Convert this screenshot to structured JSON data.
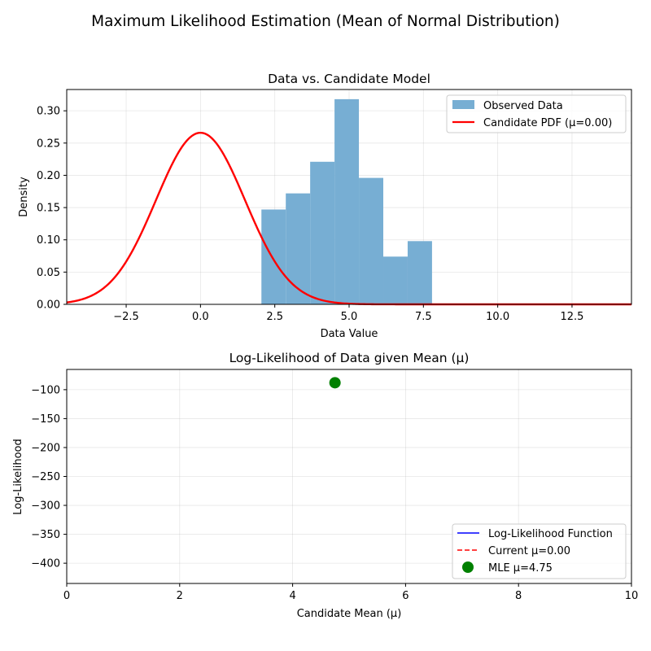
{
  "figure": {
    "title": "Maximum Likelihood Estimation (Mean of Normal Distribution)"
  },
  "chart_data": [
    {
      "type": "bar",
      "title": "Data vs. Candidate Model",
      "xlabel": "Data Value",
      "ylabel": "Density",
      "xlim": [
        -4.5,
        14.5
      ],
      "ylim": [
        0,
        0.333
      ],
      "xticks": [
        -2.5,
        0.0,
        2.5,
        5.0,
        7.5,
        10.0,
        12.5
      ],
      "xtick_labels": [
        "−2.5",
        "0.0",
        "2.5",
        "5.0",
        "7.5",
        "10.0",
        "12.5"
      ],
      "yticks": [
        0.0,
        0.05,
        0.1,
        0.15,
        0.2,
        0.25,
        0.3
      ],
      "ytick_labels": [
        "0.00",
        "0.05",
        "0.10",
        "0.15",
        "0.20",
        "0.25",
        "0.30"
      ],
      "grid": true,
      "legend_position": "top-right",
      "histogram": {
        "name": "Observed Data",
        "color": "#77aed3",
        "bin_edges": [
          2.05,
          2.87,
          3.69,
          4.51,
          5.33,
          6.15,
          6.97,
          7.79
        ],
        "values": [
          0.147,
          0.172,
          0.221,
          0.318,
          0.196,
          0.074,
          0.098
        ]
      },
      "pdf": {
        "name": "Candidate PDF (μ=0.00)",
        "color": "#ff0000",
        "mean": 0.0,
        "sd": 1.5
      }
    },
    {
      "type": "line",
      "title": "Log-Likelihood of Data given Mean (μ)",
      "xlabel": "Candidate Mean (μ)",
      "ylabel": "Log-Likelihood",
      "xlim": [
        0,
        10
      ],
      "ylim": [
        -435,
        -65
      ],
      "xticks": [
        0,
        2,
        4,
        6,
        8,
        10
      ],
      "xtick_labels": [
        "0",
        "2",
        "4",
        "6",
        "8",
        "10"
      ],
      "yticks": [
        -100,
        -150,
        -200,
        -250,
        -300,
        -350,
        -400
      ],
      "ytick_labels": [
        "−100",
        "−150",
        "−200",
        "−250",
        "−300",
        "−350",
        "−400"
      ],
      "grid": true,
      "legend_position": "bottom-right",
      "series": [
        {
          "name": "Log-Likelihood Function",
          "color": "#0000ff",
          "style": "solid",
          "x": [],
          "y": []
        },
        {
          "name": "Current μ=0.00",
          "color": "#ff0000",
          "style": "dashed",
          "x": [],
          "y": []
        }
      ],
      "mle_point": {
        "name": "MLE μ=4.75",
        "color": "#008000",
        "x": 4.75,
        "y": -88
      }
    }
  ]
}
